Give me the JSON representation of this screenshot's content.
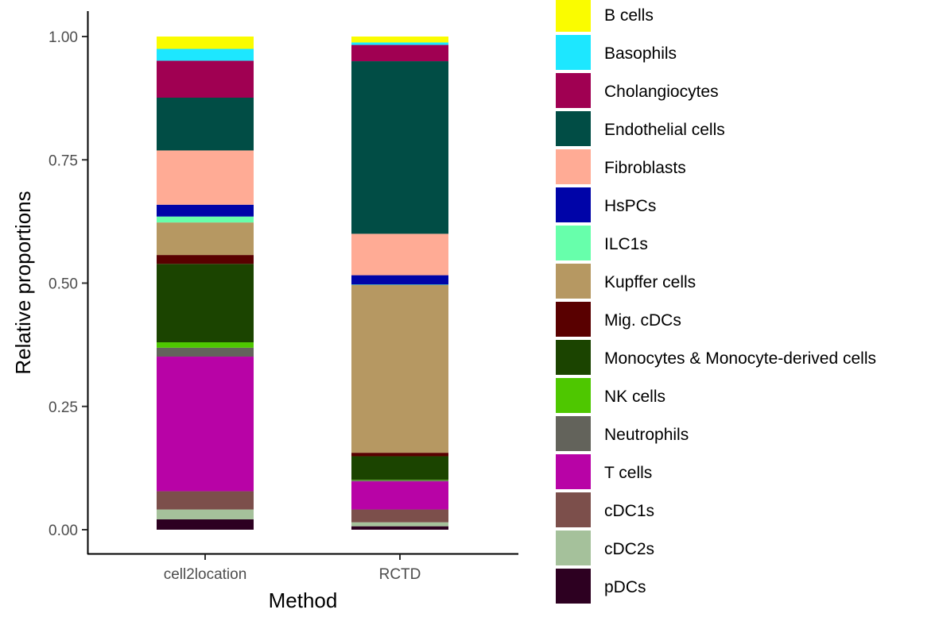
{
  "chart_data": {
    "type": "bar",
    "stacked": true,
    "xlabel": "Method",
    "ylabel": "Relative proportions",
    "ylim": [
      0,
      1
    ],
    "yticks": [
      0,
      0.25,
      0.5,
      0.75,
      1
    ],
    "ytick_labels": [
      "0.00",
      "0.25",
      "0.50",
      "0.75",
      "1.00"
    ],
    "grid": false,
    "legend_position": "right",
    "categories": [
      "cell2location",
      "RCTD"
    ],
    "series": [
      {
        "name": "pDCs",
        "color": "#2d0021",
        "values": [
          0.021,
          0.007
        ]
      },
      {
        "name": "cDC2s",
        "color": "#a5c19b",
        "values": [
          0.02,
          0.008
        ]
      },
      {
        "name": "cDC1s",
        "color": "#7c4f4b",
        "values": [
          0.037,
          0.026
        ]
      },
      {
        "name": "T cells",
        "color": "#b803a6",
        "values": [
          0.273,
          0.057
        ]
      },
      {
        "name": "Neutrophils",
        "color": "#63635b",
        "values": [
          0.018,
          0.002
        ]
      },
      {
        "name": "NK cells",
        "color": "#4ec700",
        "values": [
          0.011,
          0.001
        ]
      },
      {
        "name": "Monocytes & Monocyte-derived cells",
        "color": "#1b4400",
        "values": [
          0.159,
          0.048
        ]
      },
      {
        "name": "Mig. cDCs",
        "color": "#590000",
        "values": [
          0.018,
          0.007
        ]
      },
      {
        "name": "Kupffer cells",
        "color": "#b69862",
        "values": [
          0.066,
          0.34
        ]
      },
      {
        "name": "ILC1s",
        "color": "#67ffab",
        "values": [
          0.012,
          0.001
        ]
      },
      {
        "name": "HsPCs",
        "color": "#0004a8",
        "values": [
          0.024,
          0.019
        ]
      },
      {
        "name": "Fibroblasts",
        "color": "#ffab95",
        "values": [
          0.11,
          0.084
        ]
      },
      {
        "name": "Endothelial cells",
        "color": "#014d45",
        "values": [
          0.107,
          0.35
        ]
      },
      {
        "name": "Cholangiocytes",
        "color": "#a00052",
        "values": [
          0.075,
          0.033
        ]
      },
      {
        "name": "Basophils",
        "color": "#1de7ff",
        "values": [
          0.024,
          0.005
        ]
      },
      {
        "name": "B cells",
        "color": "#fafc00",
        "values": [
          0.025,
          0.012
        ]
      }
    ],
    "legend_order": [
      "B cells",
      "Basophils",
      "Cholangiocytes",
      "Endothelial cells",
      "Fibroblasts",
      "HsPCs",
      "ILC1s",
      "Kupffer cells",
      "Mig. cDCs",
      "Monocytes & Monocyte-derived cells",
      "NK cells",
      "Neutrophils",
      "T cells",
      "cDC1s",
      "cDC2s",
      "pDCs"
    ]
  }
}
